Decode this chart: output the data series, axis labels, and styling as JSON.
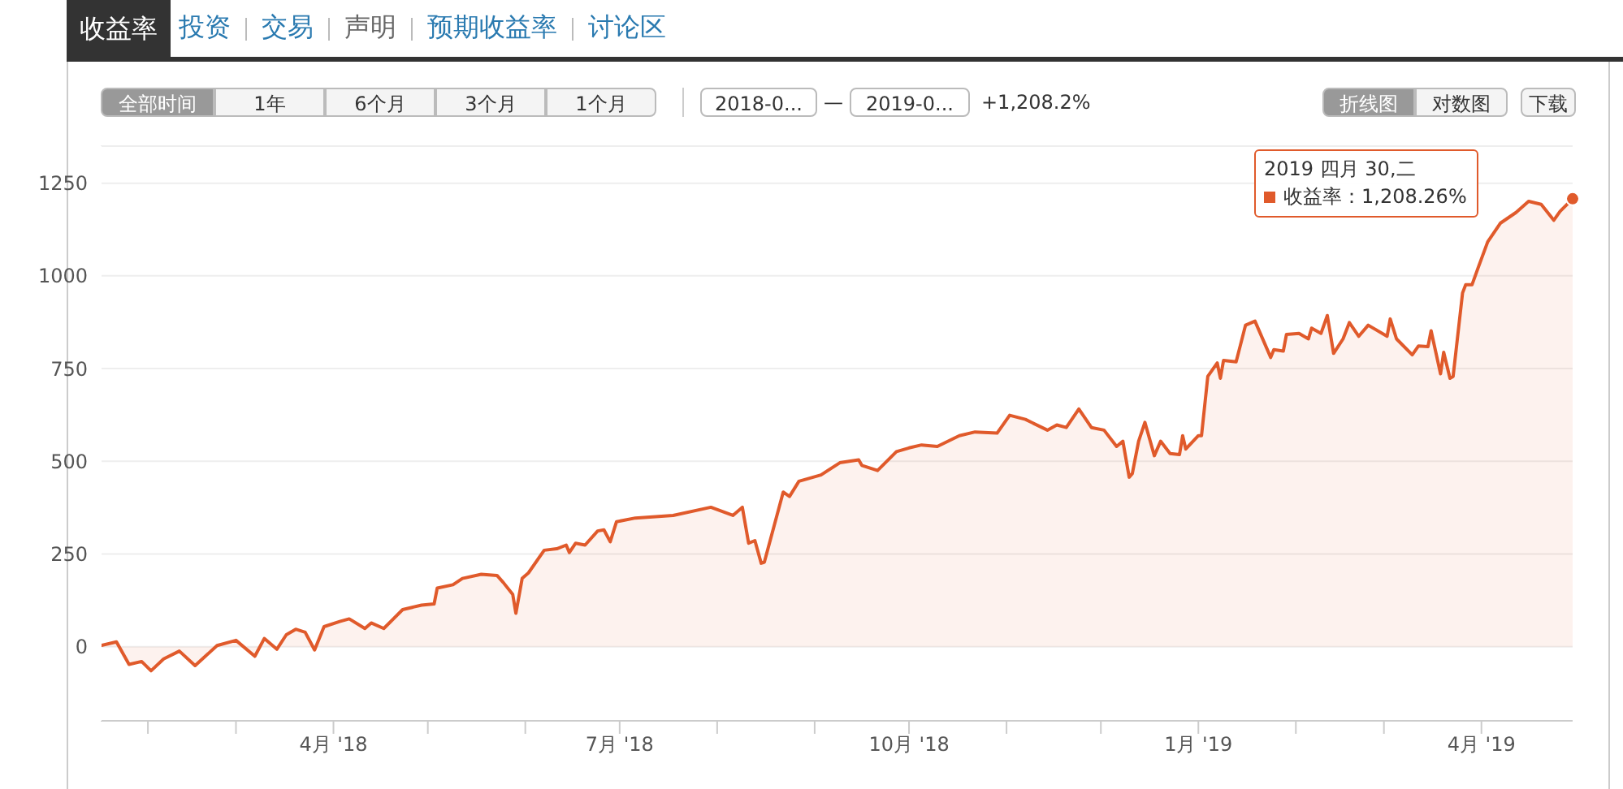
{
  "chart_data": {
    "type": "area",
    "title": "收益率",
    "annotations": [
      "投资",
      "交易",
      "声明",
      "预期收益率",
      "讨论区",
      "全部时间",
      "1年",
      "6个月",
      "3个月",
      "1个月",
      "2018-0...",
      "—",
      "2019-0...",
      "+1,208.2%",
      "折线图",
      "对数图",
      "下载",
      "2019 四月 30,二",
      "：1,208.26%"
    ],
    "legend": "top right",
    "x": [
      "2018-01-17",
      "2018-01-22",
      "2018-01-26",
      "2018-01-30",
      "2018-02-02",
      "2018-02-06",
      "2018-02-11",
      "2018-02-16",
      "2018-02-23",
      "2018-03-01",
      "2018-03-07",
      "2018-03-10",
      "2018-03-14",
      "2018-03-17",
      "2018-03-20",
      "2018-03-23",
      "2018-03-26",
      "2018-03-29",
      "2018-04-03",
      "2018-04-06",
      "2018-04-11",
      "2018-04-13",
      "2018-04-17",
      "2018-04-23",
      "2018-04-29",
      "2018-05-03",
      "2018-05-04",
      "2018-05-09",
      "2018-05-12",
      "2018-05-18",
      "2018-05-23",
      "2018-05-25",
      "2018-05-28",
      "2018-05-29",
      "2018-05-31",
      "2018-06-02",
      "2018-06-07",
      "2018-06-11",
      "2018-06-14",
      "2018-06-15",
      "2018-06-17",
      "2018-06-20",
      "2018-06-24",
      "2018-06-26",
      "2018-06-28",
      "2018-06-30",
      "2018-07-06",
      "2018-07-18",
      "2018-07-30",
      "2018-08-06",
      "2018-08-09",
      "2018-08-11",
      "2018-08-13",
      "2018-08-15",
      "2018-08-16",
      "2018-08-22",
      "2018-08-24",
      "2018-08-27",
      "2018-09-03",
      "2018-09-09",
      "2018-09-15",
      "2018-09-16",
      "2018-09-21",
      "2018-09-27",
      "2018-10-01",
      "2018-10-05",
      "2018-10-10",
      "2018-10-17",
      "2018-10-22",
      "2018-10-29",
      "2018-11-02",
      "2018-11-07",
      "2018-11-14",
      "2018-11-17",
      "2018-11-20",
      "2018-11-24",
      "2018-11-28",
      "2018-12-02",
      "2018-12-06",
      "2018-12-08",
      "2018-12-10",
      "2018-12-11",
      "2018-12-13",
      "2018-12-15",
      "2018-12-18",
      "2018-12-20",
      "2018-12-23",
      "2018-12-26",
      "2018-12-27",
      "2018-12-28",
      "2019-01-01",
      "2019-01-02",
      "2019-01-04",
      "2019-01-07",
      "2019-01-08",
      "2019-01-09",
      "2019-01-13",
      "2019-01-16",
      "2019-01-19",
      "2019-01-24",
      "2019-01-25",
      "2019-01-28",
      "2019-01-29",
      "2019-02-02",
      "2019-02-05",
      "2019-02-06",
      "2019-02-09",
      "2019-02-11",
      "2019-02-13",
      "2019-02-16",
      "2019-02-18",
      "2019-02-21",
      "2019-02-24",
      "2019-03-02",
      "2019-03-03",
      "2019-03-05",
      "2019-03-10",
      "2019-03-12",
      "2019-03-15",
      "2019-03-16",
      "2019-03-19",
      "2019-03-20",
      "2019-03-22",
      "2019-03-23",
      "2019-03-26",
      "2019-03-27",
      "2019-03-29",
      "2019-03-31",
      "2019-04-03",
      "2019-04-07",
      "2019-04-12",
      "2019-04-16",
      "2019-04-20",
      "2019-04-24",
      "2019-04-26",
      "2019-04-30"
    ],
    "series": [
      {
        "name": "收益率",
        "color": "#e05a2b",
        "values": [
          3,
          13,
          -48,
          -40,
          -65,
          -33,
          -12,
          -51,
          3,
          17,
          -26,
          22,
          -7,
          32,
          47,
          39,
          -9,
          54,
          68,
          75,
          49,
          64,
          49,
          100,
          112,
          115,
          158,
          167,
          184,
          195,
          192,
          173,
          141,
          90,
          184,
          199,
          260,
          264,
          274,
          254,
          279,
          274,
          312,
          315,
          283,
          337,
          347,
          354,
          376,
          354,
          376,
          279,
          286,
          225,
          228,
          417,
          405,
          446,
          463,
          496,
          504,
          489,
          475,
          526,
          536,
          544,
          540,
          569,
          579,
          576,
          624,
          613,
          584,
          598,
          591,
          641,
          591,
          584,
          540,
          554,
          457,
          467,
          554,
          605,
          515,
          554,
          521,
          518,
          569,
          533,
          569,
          569,
          729,
          765,
          724,
          772,
          768,
          867,
          878,
          780,
          801,
          797,
          842,
          845,
          830,
          859,
          845,
          893,
          791,
          830,
          874,
          837,
          867,
          837,
          884,
          830,
          787,
          811,
          809,
          852,
          736,
          794,
          724,
          729,
          954,
          976,
          976,
          1023,
          1092,
          1142,
          1171,
          1201,
          1193,
          1150,
          1174,
          1208
        ]
      }
    ],
    "xlim": [
      "2018-01-17",
      "2019-04-30"
    ],
    "xticks": [
      {
        "value": "2018-02-01",
        "label": null
      },
      {
        "value": "2018-03-01",
        "label": null
      },
      {
        "value": "2018-04-01",
        "label": "4月 '18"
      },
      {
        "value": "2018-05-01",
        "label": null
      },
      {
        "value": "2018-06-01",
        "label": null
      },
      {
        "value": "2018-07-01",
        "label": "7月 '18"
      },
      {
        "value": "2018-08-01",
        "label": null
      },
      {
        "value": "2018-09-01",
        "label": null
      },
      {
        "value": "2018-10-01",
        "label": "10月 '18"
      },
      {
        "value": "2018-11-01",
        "label": null
      },
      {
        "value": "2018-12-01",
        "label": null
      },
      {
        "value": "2019-01-01",
        "label": "1月 '19"
      },
      {
        "value": "2019-02-01",
        "label": null
      },
      {
        "value": "2019-03-01",
        "label": null
      },
      {
        "value": "2019-04-01",
        "label": "4月 '19"
      }
    ],
    "ylim": [
      -200,
      1350
    ],
    "yticks": [
      0,
      250,
      500,
      750,
      1000,
      1250
    ],
    "grid": "y"
  }
}
